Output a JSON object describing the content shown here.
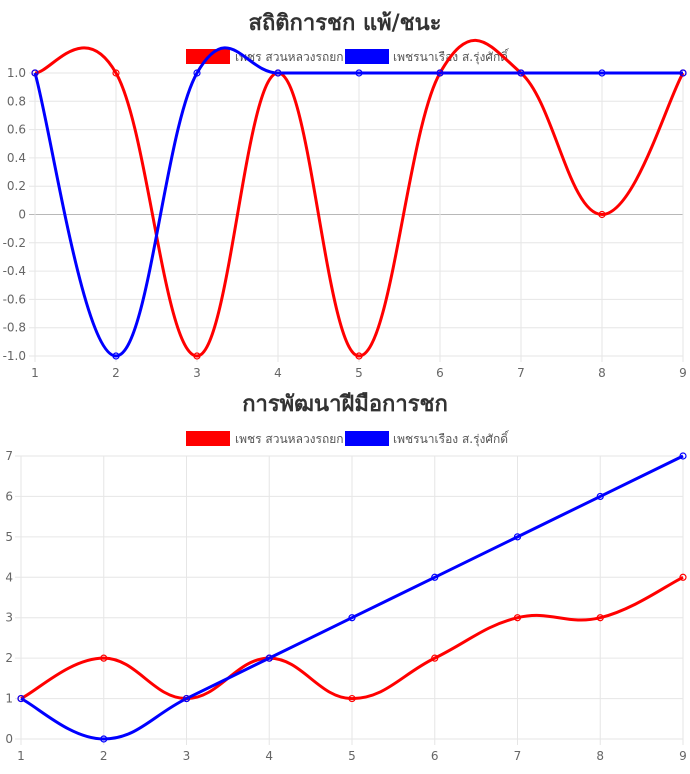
{
  "charts": {
    "win_loss": {
      "title": "สถิติการชก แพ้/ชนะ",
      "legend": [
        {
          "label": "เพชร สวนหลวงรถยก",
          "color": "#ff0000"
        },
        {
          "label": "เพชรนาเรือง ส.รุ่งศักดิ์",
          "color": "#0000ff"
        }
      ]
    },
    "progress": {
      "title": "การพัฒนาฝีมือการชก",
      "legend": [
        {
          "label": "เพชร สวนหลวงรถยก",
          "color": "#ff0000"
        },
        {
          "label": "เพชรนาเรือง ส.รุ่งศักดิ์",
          "color": "#0000ff"
        }
      ]
    }
  },
  "chart_data": [
    {
      "type": "line",
      "title": "สถิติการชก แพ้/ชนะ",
      "x": [
        1,
        2,
        3,
        4,
        5,
        6,
        7,
        8,
        9
      ],
      "ylim": [
        -1.0,
        1.0
      ],
      "yticks": [
        "1.0",
        "0.8",
        "0.6",
        "0.4",
        "0.2",
        "0",
        "-0.2",
        "-0.4",
        "-0.6",
        "-0.8",
        "-1.0"
      ],
      "grid": true,
      "legend_position": "top",
      "series": [
        {
          "name": "เพชร สวนหลวงรถยก",
          "color": "#ff0000",
          "values": [
            1,
            1,
            -1,
            1,
            -1,
            1,
            1,
            0,
            1
          ]
        },
        {
          "name": "เพชรนาเรือง ส.รุ่งศักดิ์",
          "color": "#0000ff",
          "values": [
            1,
            -1,
            1,
            1,
            1,
            1,
            1,
            1,
            1
          ]
        }
      ]
    },
    {
      "type": "line",
      "title": "การพัฒนาฝีมือการชก",
      "x": [
        1,
        2,
        3,
        4,
        5,
        6,
        7,
        8,
        9
      ],
      "ylim": [
        0,
        7
      ],
      "yticks": [
        "7",
        "6",
        "5",
        "4",
        "3",
        "2",
        "1",
        "0"
      ],
      "grid": true,
      "legend_position": "top",
      "series": [
        {
          "name": "เพชร สวนหลวงรถยก",
          "color": "#ff0000",
          "values": [
            1,
            2,
            1,
            2,
            1,
            2,
            3,
            3,
            4
          ]
        },
        {
          "name": "เพชรนาเรือง ส.รุ่งศักดิ์",
          "color": "#0000ff",
          "values": [
            1,
            0,
            1,
            2,
            3,
            4,
            5,
            6,
            7
          ]
        }
      ]
    }
  ]
}
